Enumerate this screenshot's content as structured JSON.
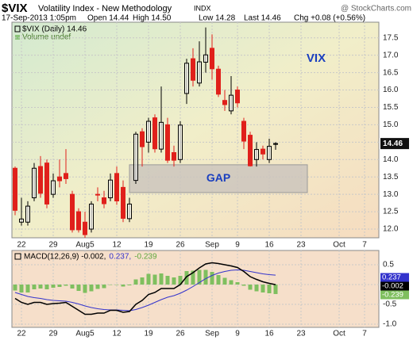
{
  "header": {
    "symbol": "$VIX",
    "name": "Volatility Index - New Methodology",
    "exchange": "INDX",
    "watermark": "@ StockCharts.com",
    "datetime": "17-Sep-2013 1:05pm",
    "stats": [
      "Open 14.44",
      "High 14.50",
      "Low 14.28",
      "Last 14.46",
      "Chg +0.08 (+0.56%)"
    ]
  },
  "chart_data": [
    {
      "type": "candlestick",
      "dates": [
        "2013-07-19",
        "2013-07-22",
        "2013-07-23",
        "2013-07-24",
        "2013-07-25",
        "2013-07-26",
        "2013-07-29",
        "2013-07-30",
        "2013-07-31",
        "2013-08-01",
        "2013-08-02",
        "2013-08-05",
        "2013-08-06",
        "2013-08-07",
        "2013-08-08",
        "2013-08-09",
        "2013-08-12",
        "2013-08-13",
        "2013-08-14",
        "2013-08-15",
        "2013-08-16",
        "2013-08-19",
        "2013-08-20",
        "2013-08-21",
        "2013-08-22",
        "2013-08-23",
        "2013-08-26",
        "2013-08-27",
        "2013-08-28",
        "2013-08-29",
        "2013-08-30",
        "2013-09-03",
        "2013-09-04",
        "2013-09-05",
        "2013-09-06",
        "2013-09-09",
        "2013-09-10",
        "2013-09-11",
        "2013-09-12",
        "2013-09-13",
        "2013-09-16",
        "2013-09-17"
      ],
      "series": [
        {
          "name": "$VIX (Daily) 14.46",
          "up_color": "#000000",
          "down_color": "#e0201b",
          "open": [
            13.75,
            12.2,
            12.2,
            12.9,
            13.8,
            13.9,
            13.0,
            13.5,
            13.6,
            13.0,
            12.5,
            12.2,
            12.0,
            13.0,
            12.9,
            12.9,
            13.6,
            13.2,
            12.3,
            13.4,
            14.8,
            14.5,
            15.2,
            14.3,
            15.0,
            14.2,
            14.0,
            15.9,
            16.9,
            16.2,
            16.8,
            17.2,
            16.6,
            15.7,
            15.4,
            16.0,
            15.1,
            14.7,
            14.0,
            14.3,
            14.0,
            14.44
          ],
          "high": [
            13.8,
            12.9,
            12.8,
            13.9,
            14.1,
            14.0,
            13.6,
            14.0,
            14.3,
            13.1,
            12.6,
            12.5,
            12.8,
            13.2,
            13.1,
            13.6,
            13.8,
            13.4,
            12.9,
            14.8,
            14.9,
            15.2,
            15.3,
            16.1,
            15.2,
            14.4,
            15.1,
            16.9,
            17.2,
            17.4,
            17.8,
            17.6,
            16.7,
            16.0,
            16.4,
            16.1,
            15.2,
            14.8,
            14.5,
            14.4,
            14.6,
            14.5
          ],
          "low": [
            12.4,
            12.1,
            12.1,
            12.8,
            12.9,
            12.6,
            12.9,
            13.2,
            13.3,
            11.9,
            11.9,
            11.75,
            11.9,
            12.8,
            12.6,
            12.8,
            12.7,
            12.2,
            12.2,
            13.3,
            13.8,
            14.2,
            14.2,
            14.2,
            13.9,
            13.8,
            13.9,
            15.6,
            16.1,
            16.1,
            16.5,
            16.3,
            15.8,
            15.4,
            15.3,
            15.5,
            14.3,
            13.8,
            13.8,
            14.0,
            13.9,
            14.28
          ],
          "close": [
            12.54,
            12.29,
            12.66,
            13.75,
            13.03,
            12.72,
            13.39,
            13.39,
            13.45,
            11.98,
            11.98,
            11.84,
            12.72,
            12.98,
            12.73,
            13.41,
            12.81,
            12.31,
            12.72,
            14.73,
            14.37,
            15.1,
            14.31,
            15.07,
            13.98,
            13.98,
            14.99,
            16.77,
            16.28,
            16.81,
            17.01,
            16.61,
            15.88,
            15.58,
            15.85,
            15.63,
            14.53,
            13.82,
            14.29,
            14.16,
            14.38,
            14.46
          ]
        }
      ],
      "volume_label": "Volume undef",
      "annotations": [
        "VIX"
      ],
      "gap": {
        "label": "GAP",
        "range": [
          13.05,
          13.85
        ],
        "dates": [
          "2013-08-14",
          "2013-09-24"
        ],
        "color": "#c9c3bd",
        "text_color": "#1a3fbf"
      },
      "ylim": [
        11.75,
        17.95
      ],
      "yticks": [
        {
          "value": 12,
          "label": "12.0"
        },
        12.5,
        {
          "value": 13,
          "label": "13.0"
        },
        13.5,
        {
          "value": 14,
          "label": "14.0"
        },
        14.5,
        {
          "value": 15,
          "label": "15.0"
        },
        15.5,
        {
          "value": 16,
          "label": "16.0"
        },
        16.5,
        {
          "value": 17,
          "label": "17.0"
        },
        17.5
      ],
      "xticks": [
        {
          "value": "2013-07-22",
          "label": "22"
        },
        {
          "value": "2013-07-29",
          "label": "29"
        },
        {
          "value": "2013-08-05",
          "label": "Aug5"
        },
        {
          "value": "2013-08-12",
          "label": "12"
        },
        {
          "value": "2013-08-19",
          "label": "19"
        },
        {
          "value": "2013-08-26",
          "label": "26"
        },
        {
          "value": "2013-09-03",
          "label": "Sep"
        },
        {
          "value": "2013-09-09",
          "label": "9"
        },
        {
          "value": "2013-09-16",
          "label": "16"
        },
        {
          "value": "2013-09-23",
          "label": "23"
        },
        {
          "value": "2013-10-01",
          "label": "Oct"
        },
        {
          "value": "2013-10-07",
          "label": "7"
        }
      ],
      "grid": true
    },
    {
      "type": "macd",
      "legend": [
        {
          "text": "MACD(12,26,9) -0.002,",
          "color": "#000000"
        },
        {
          "text": "0.237,",
          "color": "#3333cc"
        },
        {
          "text": "-0.239",
          "color": "#5fa83f"
        }
      ],
      "series": [
        {
          "name": "MACD",
          "color": "#000000",
          "values": [
            -0.35,
            -0.45,
            -0.5,
            -0.45,
            -0.45,
            -0.5,
            -0.48,
            -0.47,
            -0.45,
            -0.55,
            -0.65,
            -0.75,
            -0.75,
            -0.72,
            -0.72,
            -0.65,
            -0.65,
            -0.7,
            -0.68,
            -0.5,
            -0.4,
            -0.25,
            -0.2,
            -0.1,
            -0.1,
            -0.1,
            0.0,
            0.2,
            0.3,
            0.42,
            0.52,
            0.55,
            0.53,
            0.5,
            0.47,
            0.43,
            0.33,
            0.2,
            0.13,
            0.07,
            0.03,
            -0.002
          ]
        },
        {
          "name": "Signal",
          "color": "#3333cc",
          "values": [
            -0.2,
            -0.25,
            -0.3,
            -0.33,
            -0.35,
            -0.38,
            -0.4,
            -0.41,
            -0.42,
            -0.45,
            -0.49,
            -0.54,
            -0.58,
            -0.61,
            -0.63,
            -0.64,
            -0.64,
            -0.65,
            -0.66,
            -0.63,
            -0.58,
            -0.52,
            -0.45,
            -0.38,
            -0.32,
            -0.28,
            -0.22,
            -0.14,
            -0.05,
            0.05,
            0.15,
            0.23,
            0.29,
            0.33,
            0.36,
            0.37,
            0.36,
            0.33,
            0.3,
            0.27,
            0.25,
            0.237
          ]
        },
        {
          "name": "Histogram",
          "color": "#7fbf5f",
          "values": [
            -0.15,
            -0.2,
            -0.2,
            -0.12,
            -0.1,
            -0.12,
            -0.08,
            -0.06,
            -0.03,
            -0.1,
            -0.16,
            -0.21,
            -0.17,
            -0.11,
            -0.09,
            -0.01,
            -0.01,
            -0.05,
            -0.02,
            0.13,
            0.18,
            0.27,
            0.25,
            0.28,
            0.22,
            0.18,
            0.22,
            0.34,
            0.35,
            0.37,
            0.37,
            0.32,
            0.24,
            0.17,
            0.11,
            0.06,
            -0.03,
            -0.13,
            -0.17,
            -0.2,
            -0.22,
            -0.239
          ]
        }
      ],
      "ylim": [
        -1.08,
        0.86
      ],
      "yticks": [
        0.5,
        {
          "value": 0,
          "label": "0.0"
        },
        -0.5,
        {
          "value": -1,
          "label": "-1.0"
        }
      ],
      "grid": true
    }
  ]
}
